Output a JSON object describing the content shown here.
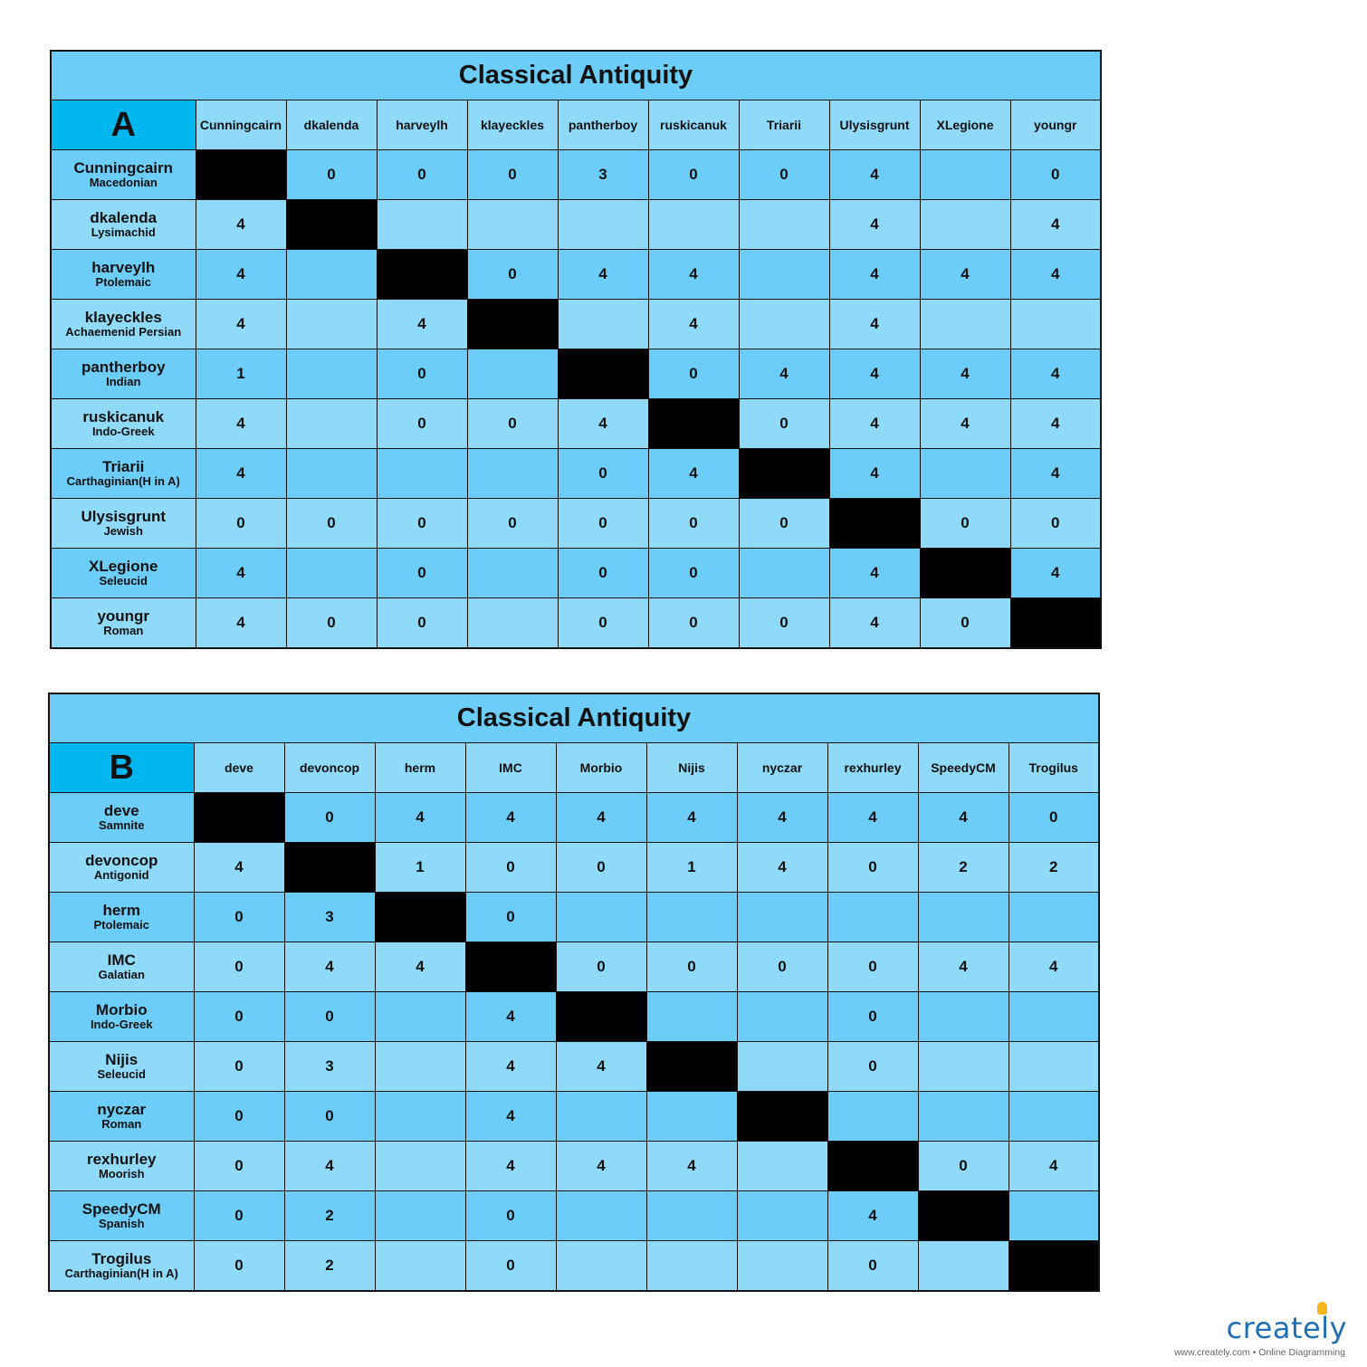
{
  "tables": [
    {
      "title": "Classical Antiquity",
      "group": "A",
      "columns": [
        "Cunningcairn",
        "dkalenda",
        "harveylh",
        "klayeckles",
        "pantherboy",
        "ruskicanuk",
        "Triarii",
        "Ulysisgrunt",
        "XLegione",
        "youngr"
      ],
      "rows": [
        {
          "name": "Cunningcairn",
          "faction": "Macedonian",
          "cells": [
            "",
            "0",
            "0",
            "0",
            "3",
            "0",
            "0",
            "4",
            "",
            "0"
          ]
        },
        {
          "name": "dkalenda",
          "faction": "Lysimachid",
          "cells": [
            "4",
            "",
            "",
            "",
            "",
            "",
            "",
            "4",
            "",
            "4"
          ]
        },
        {
          "name": "harveylh",
          "faction": "Ptolemaic",
          "cells": [
            "4",
            "",
            "",
            "0",
            "4",
            "4",
            "",
            "4",
            "4",
            "4"
          ]
        },
        {
          "name": "klayeckles",
          "faction": "Achaemenid Persian",
          "cells": [
            "4",
            "",
            "4",
            "",
            "",
            "4",
            "",
            "4",
            "",
            ""
          ]
        },
        {
          "name": "pantherboy",
          "faction": "Indian",
          "cells": [
            "1",
            "",
            "0",
            "",
            "",
            "0",
            "4",
            "4",
            "4",
            "4"
          ]
        },
        {
          "name": "ruskicanuk",
          "faction": "Indo-Greek",
          "cells": [
            "4",
            "",
            "0",
            "0",
            "4",
            "",
            "0",
            "4",
            "4",
            "4"
          ]
        },
        {
          "name": "Triarii",
          "faction": "Carthaginian(H in A)",
          "cells": [
            "4",
            "",
            "",
            "",
            "0",
            "4",
            "",
            "4",
            "",
            "4"
          ]
        },
        {
          "name": "Ulysisgrunt",
          "faction": "Jewish",
          "cells": [
            "0",
            "0",
            "0",
            "0",
            "0",
            "0",
            "0",
            "",
            "0",
            "0"
          ]
        },
        {
          "name": "XLegione",
          "faction": "Seleucid",
          "cells": [
            "4",
            "",
            "0",
            "",
            "0",
            "0",
            "",
            "4",
            "",
            "4"
          ]
        },
        {
          "name": "youngr",
          "faction": "Roman",
          "cells": [
            "4",
            "0",
            "0",
            "",
            "0",
            "0",
            "0",
            "4",
            "0",
            ""
          ]
        }
      ]
    },
    {
      "title": "Classical Antiquity",
      "group": "B",
      "columns": [
        "deve",
        "devoncop",
        "herm",
        "IMC",
        "Morbio",
        "Nijis",
        "nyczar",
        "rexhurley",
        "SpeedyCM",
        "Trogilus"
      ],
      "rows": [
        {
          "name": "deve",
          "faction": "Samnite",
          "cells": [
            "",
            "0",
            "4",
            "4",
            "4",
            "4",
            "4",
            "4",
            "4",
            "0"
          ]
        },
        {
          "name": "devoncop",
          "faction": "Antigonid",
          "cells": [
            "4",
            "",
            "1",
            "0",
            "0",
            "1",
            "4",
            "0",
            "2",
            "2"
          ]
        },
        {
          "name": "herm",
          "faction": "Ptolemaic",
          "cells": [
            "0",
            "3",
            "",
            "0",
            "",
            "",
            "",
            "",
            "",
            ""
          ]
        },
        {
          "name": "IMC",
          "faction": "Galatian",
          "cells": [
            "0",
            "4",
            "4",
            "",
            "0",
            "0",
            "0",
            "0",
            "4",
            "4"
          ]
        },
        {
          "name": "Morbio",
          "faction": "Indo-Greek",
          "cells": [
            "0",
            "0",
            "",
            "4",
            "",
            "",
            "",
            "0",
            "",
            ""
          ]
        },
        {
          "name": "Nijis",
          "faction": "Seleucid",
          "cells": [
            "0",
            "3",
            "",
            "4",
            "4",
            "",
            "",
            "0",
            "",
            ""
          ]
        },
        {
          "name": "nyczar",
          "faction": "Roman",
          "cells": [
            "0",
            "0",
            "",
            "4",
            "",
            "",
            "",
            "",
            "",
            ""
          ]
        },
        {
          "name": "rexhurley",
          "faction": "Moorish",
          "cells": [
            "0",
            "4",
            "",
            "4",
            "4",
            "4",
            "",
            "",
            "0",
            "4"
          ]
        },
        {
          "name": "SpeedyCM",
          "faction": "Spanish",
          "cells": [
            "0",
            "2",
            "",
            "0",
            "",
            "",
            "",
            "4",
            "",
            ""
          ]
        },
        {
          "name": "Trogilus",
          "faction": "Carthaginian(H in A)",
          "cells": [
            "0",
            "2",
            "",
            "0",
            "",
            "",
            "",
            "0",
            "",
            ""
          ]
        }
      ]
    }
  ],
  "logo": {
    "brand": "creately",
    "tagline": "www.creately.com • Online Diagramming",
    "color": "#1f6fb5"
  },
  "colors": {
    "title_bg": "#6ccef8",
    "group_bg": "#00b6ee",
    "row_odd": "#6ccef8",
    "row_even": "#90daf9",
    "diagonal": "#000000"
  }
}
